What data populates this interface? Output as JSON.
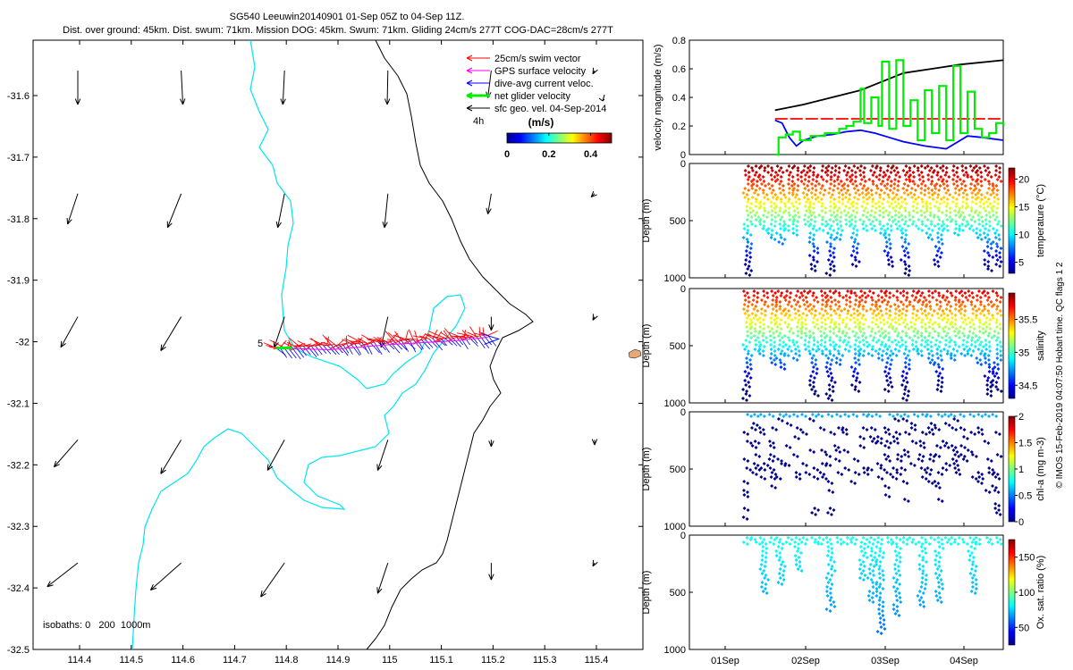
{
  "header": {
    "title_line1": "SG540 Leeuwin20140901 01-Sep 05Z to 04-Sep 11Z.",
    "title_line2": "Dist. over ground: 45km. Dist. swum: 71km. Mission DOG: 45km. Swum: 71km. Gliding 24cm/s 277T COG-DAC=28cm/s 277T"
  },
  "side_label": "© IMOS 15-Feb-2019 04:07:50 Hobart time. QC flags 1  2",
  "colors": {
    "swim_vector": "#ff0000",
    "gps_velocity": "#ff00ff",
    "dive_avg_current": "#0000ff",
    "net_glider_velocity": "#00ee00",
    "sfc_geo_velocity": "#000000",
    "isobath_200": "#00e5ee",
    "isobath_1000": "#000000",
    "island": "#e8a878"
  },
  "chart_data": [
    {
      "type": "scatter",
      "name": "map",
      "x_ticks": [
        "114.4",
        "114.5",
        "114.6",
        "114.7",
        "114.8",
        "114.9",
        "115",
        "115.1",
        "115.2",
        "115.3",
        "115.4"
      ],
      "y_ticks": [
        "-31.6",
        "-31.7",
        "-31.8",
        "-31.9",
        "-32",
        "-32.1",
        "-32.2",
        "-32.3",
        "-32.4",
        "-32.5"
      ],
      "xlim": [
        114.31,
        115.49
      ],
      "ylim": [
        -32.5,
        -31.51
      ],
      "legend": {
        "placement": "top-right",
        "entries": [
          "25cm/s swim vector",
          "GPS surface velocity",
          "dive-avg current veloc.",
          "net glider velocity",
          "sfc geo. vel. 04-Sep-2014"
        ],
        "scale_label": "4h"
      },
      "colorbar": {
        "title": "(m/s)",
        "ticks": [
          "0",
          "0.2",
          "0.4"
        ],
        "range": [
          0,
          0.5
        ]
      },
      "isobath_label": "isobaths: 0   200  1000m",
      "track_label": "5",
      "track": {
        "lon_start": 114.78,
        "lon_end": 115.19,
        "lat": -32.01
      },
      "geo_velocity_grid": {
        "lons": [
          114.4,
          114.6,
          114.8,
          115.0,
          115.2,
          115.4
        ],
        "lats": [
          -31.6,
          -31.8,
          -32.0,
          -32.2,
          -32.4
        ]
      }
    },
    {
      "type": "line",
      "name": "velocity",
      "ylabel": "velocity magnitude (m/s)",
      "ylim": [
        0,
        0.8
      ],
      "y_ticks": [
        "0",
        "0.2",
        "0.4",
        "0.6",
        "0.8"
      ],
      "x_range_days": [
        0,
        4.4
      ],
      "series": [
        {
          "name": "",
          "color": "#000000",
          "x": [
            1.2,
            1.6,
            2.0,
            2.4,
            2.75,
            3.0,
            3.4,
            3.8,
            4.4
          ],
          "values": [
            0.31,
            0.35,
            0.4,
            0.45,
            0.52,
            0.57,
            0.6,
            0.63,
            0.66
          ]
        },
        {
          "name": "",
          "color": "#ff0000",
          "x": [
            1.2,
            4.4
          ],
          "values": [
            0.25,
            0.25
          ]
        },
        {
          "name": "",
          "color": "#0000ff",
          "x": [
            1.2,
            1.3,
            1.4,
            1.5,
            1.6,
            1.8,
            2.0,
            2.2,
            2.4,
            2.6,
            2.8,
            3.0,
            3.3,
            3.6,
            3.9,
            4.1,
            4.4
          ],
          "values": [
            0.24,
            0.22,
            0.12,
            0.06,
            0.1,
            0.13,
            0.14,
            0.16,
            0.17,
            0.15,
            0.12,
            0.09,
            0.06,
            0.04,
            0.13,
            0.12,
            0.1
          ]
        },
        {
          "name": "",
          "color": "#00ee00",
          "x": [
            1.2,
            1.25,
            1.35,
            1.45,
            1.55,
            1.7,
            1.9,
            2.1,
            2.2,
            2.3,
            2.4,
            2.45,
            2.55,
            2.65,
            2.7,
            2.8,
            2.9,
            3.0,
            3.1,
            3.2,
            3.3,
            3.4,
            3.5,
            3.6,
            3.7,
            3.8,
            3.9,
            4.0,
            4.1,
            4.2,
            4.3,
            4.4
          ],
          "values": [
            0.0,
            0.12,
            0.14,
            0.16,
            0.1,
            0.13,
            0.15,
            0.18,
            0.2,
            0.23,
            0.46,
            0.22,
            0.4,
            0.2,
            0.65,
            0.18,
            0.66,
            0.2,
            0.38,
            0.1,
            0.45,
            0.15,
            0.48,
            0.1,
            0.62,
            0.15,
            0.44,
            0.18,
            0.12,
            0.15,
            0.22,
            0.2
          ]
        }
      ]
    },
    {
      "type": "scatter",
      "name": "temperature",
      "ylabel": "Depth (m)",
      "y_ticks": [
        "0",
        "500",
        "1000"
      ],
      "ylim": [
        1000,
        0
      ],
      "colorbar_label": "temperature (°C)",
      "colorbar_ticks": [
        "5",
        "10",
        "15",
        "20"
      ],
      "color_range": [
        3,
        22
      ]
    },
    {
      "type": "scatter",
      "name": "salinity",
      "ylabel": "Depth (m)",
      "y_ticks": [
        "0",
        "500",
        "1000"
      ],
      "ylim": [
        1000,
        0
      ],
      "colorbar_label": "salinity",
      "colorbar_ticks": [
        "34.5",
        "35",
        "35.5"
      ],
      "color_range": [
        34.3,
        35.9
      ]
    },
    {
      "type": "scatter",
      "name": "chl-a",
      "ylabel": "Depth (m)",
      "y_ticks": [
        "0",
        "500",
        "1000"
      ],
      "ylim": [
        1000,
        0
      ],
      "colorbar_label": "chl-a (mg m-3)",
      "colorbar_ticks": [
        "0",
        "0.5",
        "1",
        "1.5",
        "2"
      ],
      "color_range": [
        0,
        2
      ]
    },
    {
      "type": "scatter",
      "name": "oxygen",
      "ylabel": "Depth (m)",
      "y_ticks": [
        "0",
        "500",
        "1000"
      ],
      "ylim": [
        1000,
        0
      ],
      "colorbar_label": "Ox. sat. ratio (%)",
      "colorbar_ticks": [
        "50",
        "100",
        "150"
      ],
      "color_range": [
        25,
        175
      ],
      "x_ticks": [
        "01Sep",
        "02Sep",
        "03Sep",
        "04Sep"
      ]
    }
  ]
}
